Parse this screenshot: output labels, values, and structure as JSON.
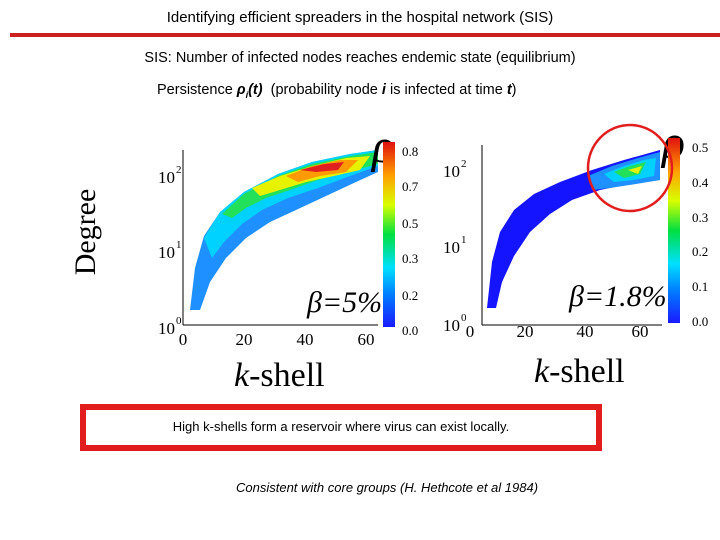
{
  "slide": {
    "title": "Identifying efficient spreaders in the hospital network (SIS)",
    "subtitle": "SIS: Number of infected nodes reaches endemic state (equilibrium)",
    "persistence": {
      "prefix": "Persistence ",
      "rho": "ρ",
      "sub_i": "i",
      "arg": "(t)",
      "desc_before": "(probability node ",
      "desc_i": "i",
      "desc_mid": " is infected at time ",
      "desc_t": "t",
      "desc_after": ")"
    },
    "y_axis_label": "Degree",
    "x_axis_label_k": "k",
    "x_axis_label_rest": "-shell",
    "callout": "High k-shells form a reservoir where virus can exist locally.",
    "footnote": "Consistent with core groups (H. Hethcote et al 1984)",
    "accent_color": "#e11d1d"
  },
  "panels": [
    {
      "beta_label": "β=5%",
      "rho_symbol": "ρ",
      "x_ticks": [
        "0",
        "20",
        "40",
        "60"
      ],
      "y_tick_base": "10",
      "y_tick_exps": [
        "0",
        "1",
        "2"
      ],
      "colorbar_ticks": [
        "0.8",
        "0.7",
        "0.5",
        "0.3",
        "0.2",
        "0.0"
      ]
    },
    {
      "beta_label": "β=1.8%",
      "rho_symbol": "ρ",
      "x_ticks": [
        "0",
        "20",
        "40",
        "60"
      ],
      "y_tick_base": "10",
      "y_tick_exps": [
        "0",
        "1",
        "2"
      ],
      "colorbar_ticks": [
        "0.5",
        "0.4",
        "0.3",
        "0.2",
        "0.1",
        "0.0"
      ]
    }
  ]
}
